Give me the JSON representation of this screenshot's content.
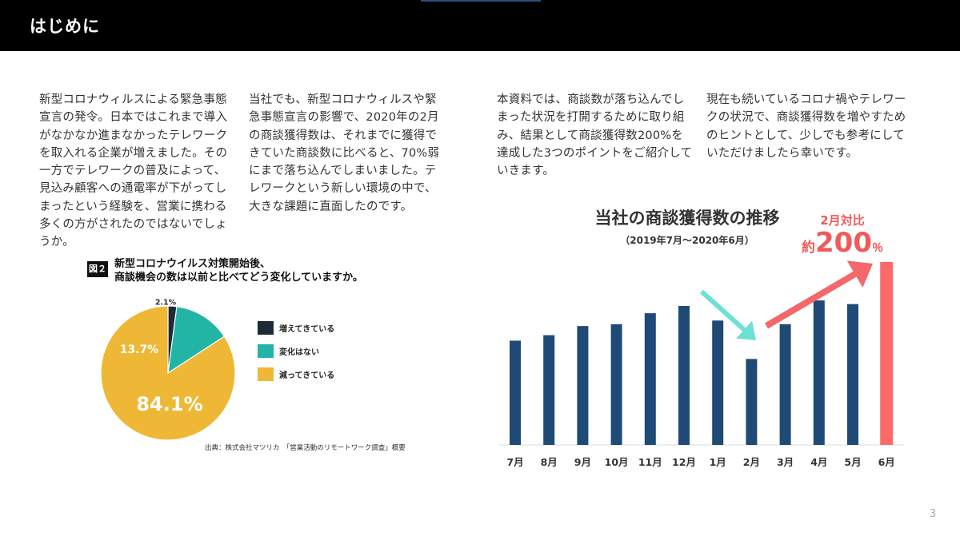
{
  "header": {
    "title": "はじめに"
  },
  "paragraphs": {
    "p1": "新型コロナウィルスによる緊急事態宣言の発令。日本ではこれまで導入がなかなか進まなかったテレワークを取入れる企業が増えました。その一方でテレワークの普及によって、見込み顧客への通電率が下がってしまったという経験を、営業に携わる多くの方がされたのではないでしょうか。",
    "p2": "当社でも、新型コロナウィルスや緊急事態宣言の影響で、2020年の2月の商談獲得数は、それまでに獲得できていた商談数に比べると、70%弱にまで落ち込んでしまいました。テレワークという新しい環境の中で、大きな課題に直面したのです。",
    "p3": "本資料では、商談数が落ち込んでしまった状況を打開するために取り組み、結果として商談獲得数200%を達成した3つのポイントをご紹介していきます。",
    "p4": "現在も続いているコロナ禍やテレワークの状況で、商談獲得数を増やすためのヒントとして、少しでも参考にしていただけましたら幸いです。"
  },
  "pie_figure": {
    "badge": "図２",
    "title_line1": "新型コロナウイルス対策開始後、",
    "title_line2": "商談機会の数は以前と比べてどう変化していますか。",
    "source": "出典：株式会社マツリカ　「営業活動のリモートワーク調査」概要"
  },
  "bar_figure": {
    "title": "当社の商談獲得数の推移",
    "subtitle": "（2019年7月〜2020年6月）",
    "callout_top": "2月対比",
    "callout_prefix": "約",
    "callout_value": "200",
    "callout_unit": "％"
  },
  "page_number": "3",
  "chart_data": [
    {
      "type": "pie",
      "categories": [
        "増えてきている",
        "変化はない",
        "減ってきている"
      ],
      "values": [
        2.1,
        13.7,
        84.1
      ],
      "value_labels": [
        "2.1%",
        "13.7%",
        "84.1%"
      ],
      "colors": [
        "#1e2b36",
        "#22b5a6",
        "#eeb836"
      ],
      "legend": "right"
    },
    {
      "type": "bar",
      "categories": [
        "7月",
        "8月",
        "9月",
        "10月",
        "11月",
        "12月",
        "1月",
        "2月",
        "3月",
        "4月",
        "5月",
        "6月"
      ],
      "values": [
        57,
        60,
        65,
        66,
        72,
        76,
        68,
        47,
        66,
        79,
        77,
        100
      ],
      "colors": [
        "#1f4a76",
        "#1f4a76",
        "#1f4a76",
        "#1f4a76",
        "#1f4a76",
        "#1f4a76",
        "#1f4a76",
        "#1f4a76",
        "#1f4a76",
        "#1f4a76",
        "#1f4a76",
        "#fd6a6a"
      ],
      "ylim": [
        0,
        100
      ],
      "grid": false,
      "yaxis": "hidden"
    }
  ]
}
